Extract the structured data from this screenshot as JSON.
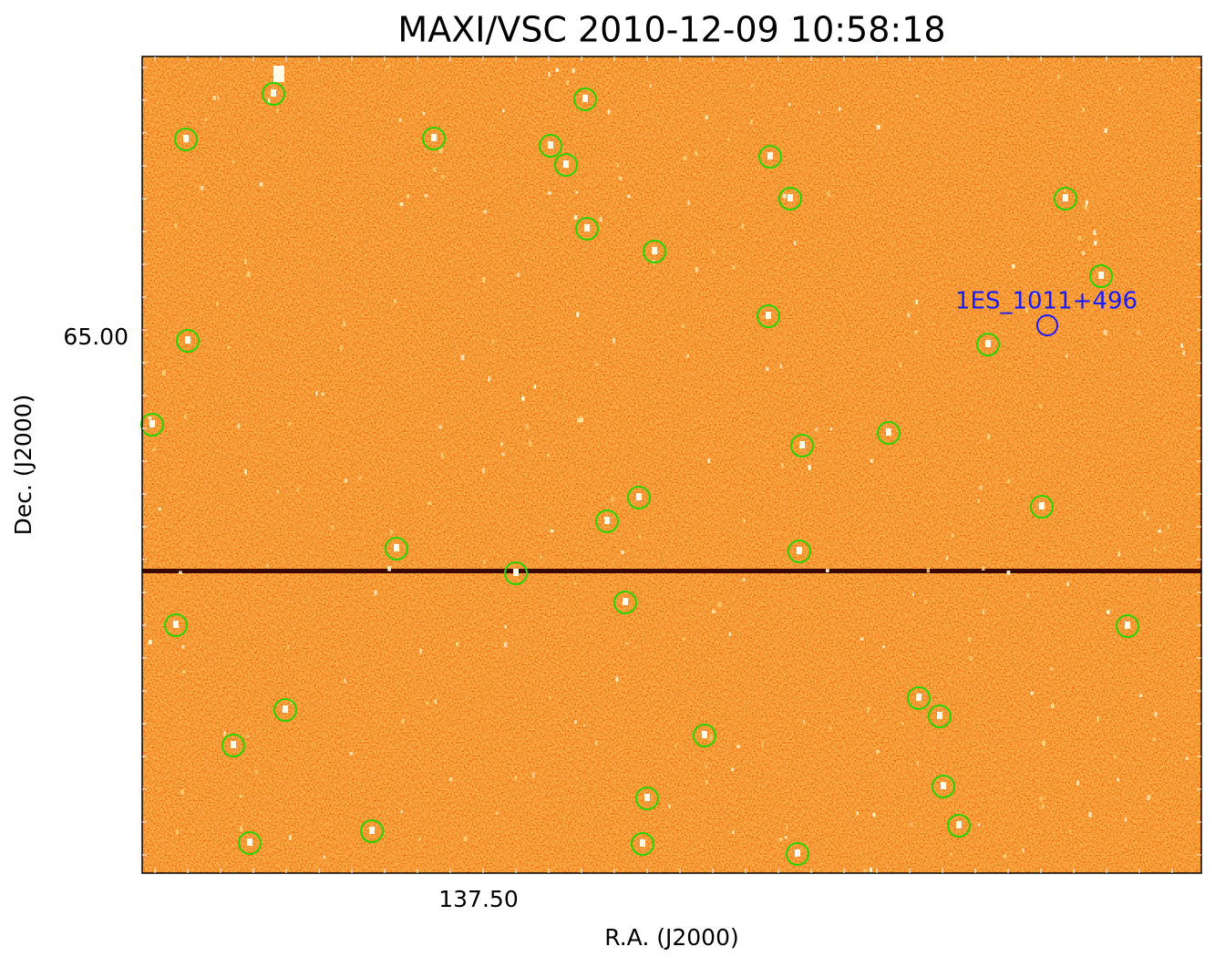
{
  "header": {
    "title": "MAXI/VSC 2010-12-09 10:58:18"
  },
  "axes": {
    "x_label": "R.A. (J2000)",
    "y_label": "Dec. (J2000)",
    "x_tick_labels": [
      "137.50"
    ],
    "y_tick_labels": [
      "65.00"
    ]
  },
  "annotations": {
    "source_label": "1ES_1011+496"
  }
}
